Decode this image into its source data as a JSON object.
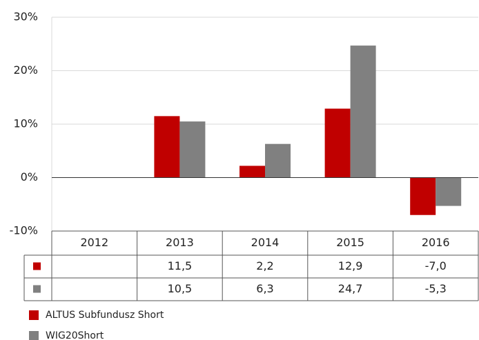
{
  "chart_data": {
    "type": "bar",
    "categories": [
      "2012",
      "2013",
      "2014",
      "2015",
      "2016"
    ],
    "series": [
      {
        "name": "ALTUS Subfundusz Short",
        "color": "#c00000",
        "values": [
          null,
          11.5,
          2.2,
          12.9,
          -7.0
        ],
        "value_labels": [
          null,
          "11,5",
          "2,2",
          "12,9",
          "-7,0"
        ]
      },
      {
        "name": "WIG20Short",
        "color": "#808080",
        "values": [
          null,
          10.5,
          6.3,
          24.7,
          -5.3
        ],
        "value_labels": [
          null,
          "10,5",
          "6,3",
          "24,7",
          "-5,3"
        ]
      }
    ],
    "ylim": [
      -10,
      30
    ],
    "yticks": [
      {
        "value": -10,
        "label": "-10%"
      },
      {
        "value": 0,
        "label": "0%"
      },
      {
        "value": 10,
        "label": "10%"
      },
      {
        "value": 20,
        "label": "20%"
      },
      {
        "value": 30,
        "label": "30%"
      }
    ],
    "grid": true
  }
}
